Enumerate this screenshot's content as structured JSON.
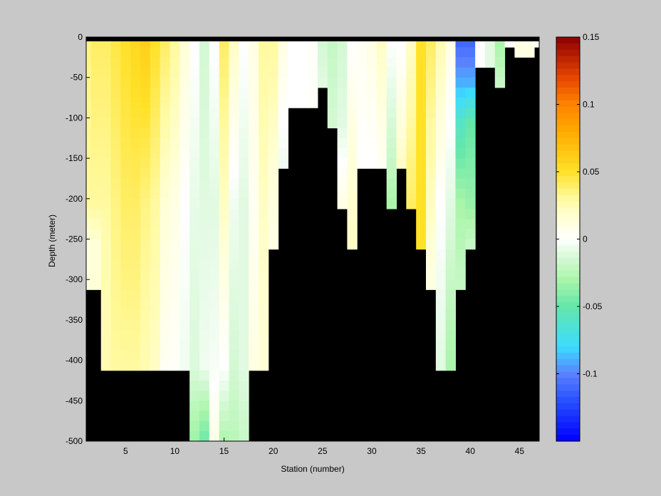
{
  "chart_data": {
    "type": "heatmap",
    "xlabel": "Station (number)",
    "ylabel": "Depth (meter)",
    "x_ticks": [
      5,
      10,
      15,
      20,
      25,
      30,
      35,
      40,
      45
    ],
    "y_ticks": [
      0,
      -50,
      -100,
      -150,
      -200,
      -250,
      -300,
      -350,
      -400,
      -450,
      -500
    ],
    "xlim": [
      1,
      47
    ],
    "ylim": [
      -500,
      0
    ],
    "x_start": 1,
    "y_top": 0,
    "cell_dx": 1,
    "cell_dy": -12.5,
    "no_data_color": "#000000",
    "colorbar": {
      "range": [
        -0.15,
        0.15
      ],
      "ticks": [
        0.15,
        0.1,
        0.05,
        0,
        -0.05,
        -0.1
      ],
      "tick_labels": [
        "0.15",
        "0.1",
        "0.05",
        "0",
        "-0.05",
        "-0.1"
      ]
    },
    "station_profiles": [
      {
        "station": 1,
        "max_depth": -300,
        "levels": [
          [
            0,
            0.035
          ],
          [
            -200,
            0.03
          ],
          [
            -250,
            0.012
          ]
        ]
      },
      {
        "station": 2,
        "max_depth": -300,
        "levels": [
          [
            0,
            0.04
          ],
          [
            -200,
            0.03
          ],
          [
            -250,
            0.015
          ]
        ]
      },
      {
        "station": 3,
        "max_depth": -400,
        "levels": [
          [
            0,
            0.04
          ],
          [
            -200,
            0.03
          ],
          [
            -250,
            0.025
          ],
          [
            -400,
            0.025
          ]
        ]
      },
      {
        "station": 4,
        "max_depth": -400,
        "levels": [
          [
            0,
            0.045
          ],
          [
            -200,
            0.035
          ],
          [
            -400,
            0.03
          ]
        ]
      },
      {
        "station": 5,
        "max_depth": -400,
        "levels": [
          [
            0,
            0.05
          ],
          [
            -200,
            0.04
          ],
          [
            -400,
            0.03
          ]
        ]
      },
      {
        "station": 6,
        "max_depth": -400,
        "levels": [
          [
            0,
            0.055
          ],
          [
            -200,
            0.04
          ],
          [
            -400,
            0.03
          ]
        ]
      },
      {
        "station": 7,
        "max_depth": -400,
        "levels": [
          [
            0,
            0.06
          ],
          [
            -200,
            0.035
          ],
          [
            -400,
            0.025
          ]
        ]
      },
      {
        "station": 8,
        "max_depth": -400,
        "levels": [
          [
            0,
            0.05
          ],
          [
            -200,
            0.03
          ],
          [
            -400,
            0.02
          ]
        ]
      },
      {
        "station": 9,
        "max_depth": -400,
        "levels": [
          [
            0,
            0.04
          ],
          [
            -200,
            0.015
          ],
          [
            -400,
            0.005
          ]
        ]
      },
      {
        "station": 10,
        "max_depth": -400,
        "levels": [
          [
            0,
            0.03
          ],
          [
            -200,
            0.01
          ],
          [
            -400,
            0.002
          ]
        ]
      },
      {
        "station": 11,
        "max_depth": -400,
        "levels": [
          [
            0,
            0.015
          ],
          [
            -200,
            0.0
          ],
          [
            -400,
            -0.005
          ]
        ]
      },
      {
        "station": 12,
        "max_depth": -500,
        "levels": [
          [
            0,
            0.0
          ],
          [
            -200,
            -0.008
          ],
          [
            -400,
            -0.012
          ],
          [
            -500,
            -0.035
          ]
        ]
      },
      {
        "station": 13,
        "max_depth": -500,
        "levels": [
          [
            0,
            -0.015
          ],
          [
            -200,
            -0.01
          ],
          [
            -400,
            -0.005
          ],
          [
            -500,
            -0.05
          ]
        ]
      },
      {
        "station": 14,
        "max_depth": -500,
        "levels": [
          [
            0,
            0.0
          ],
          [
            -200,
            -0.01
          ],
          [
            -400,
            -0.003
          ],
          [
            -500,
            0.01
          ]
        ]
      },
      {
        "station": 15,
        "max_depth": -500,
        "levels": [
          [
            0,
            0.04
          ],
          [
            -200,
            0.02
          ],
          [
            -400,
            0.0
          ],
          [
            -500,
            -0.03
          ]
        ]
      },
      {
        "station": 16,
        "max_depth": -500,
        "levels": [
          [
            0,
            0.02
          ],
          [
            -200,
            -0.005
          ],
          [
            -400,
            -0.015
          ],
          [
            -500,
            -0.025
          ]
        ]
      },
      {
        "station": 17,
        "max_depth": -500,
        "levels": [
          [
            0,
            0.0
          ],
          [
            -200,
            -0.01
          ],
          [
            -400,
            -0.01
          ],
          [
            -500,
            -0.02
          ]
        ]
      },
      {
        "station": 18,
        "max_depth": -400,
        "levels": [
          [
            0,
            0.01
          ],
          [
            -200,
            0.005
          ],
          [
            -400,
            0.01
          ]
        ]
      },
      {
        "station": 19,
        "max_depth": -400,
        "levels": [
          [
            0,
            0.03
          ],
          [
            -200,
            0.02
          ],
          [
            -400,
            0.015
          ]
        ]
      },
      {
        "station": 20,
        "max_depth": -250,
        "levels": [
          [
            0,
            0.03
          ],
          [
            -150,
            0.015
          ],
          [
            -250,
            0.01
          ]
        ]
      },
      {
        "station": 21,
        "max_depth": -150,
        "levels": [
          [
            0,
            0.01
          ],
          [
            -100,
            0.0
          ],
          [
            -150,
            -0.005
          ]
        ]
      },
      {
        "station": 22,
        "max_depth": -75,
        "levels": [
          [
            0,
            0.0
          ],
          [
            -75,
            0.0
          ]
        ]
      },
      {
        "station": 23,
        "max_depth": -75,
        "levels": [
          [
            0,
            0.0
          ],
          [
            -75,
            0.0
          ]
        ]
      },
      {
        "station": 24,
        "max_depth": -75,
        "levels": [
          [
            0,
            0.002
          ],
          [
            -75,
            0.002
          ]
        ]
      },
      {
        "station": 25,
        "max_depth": -50,
        "levels": [
          [
            0,
            -0.015
          ],
          [
            -50,
            -0.01
          ]
        ]
      },
      {
        "station": 26,
        "max_depth": -100,
        "levels": [
          [
            0,
            -0.02
          ],
          [
            -100,
            -0.015
          ]
        ]
      },
      {
        "station": 27,
        "max_depth": -200,
        "levels": [
          [
            0,
            -0.015
          ],
          [
            -100,
            -0.01
          ],
          [
            -200,
            0.01
          ]
        ]
      },
      {
        "station": 28,
        "max_depth": -250,
        "levels": [
          [
            0,
            0.0
          ],
          [
            -100,
            0.01
          ],
          [
            -250,
            0.02
          ]
        ]
      },
      {
        "station": 29,
        "max_depth": -150,
        "levels": [
          [
            0,
            0.005
          ],
          [
            -150,
            0.0
          ]
        ]
      },
      {
        "station": 30,
        "max_depth": -150,
        "levels": [
          [
            0,
            0.01
          ],
          [
            -150,
            0.0
          ]
        ]
      },
      {
        "station": 31,
        "max_depth": -150,
        "levels": [
          [
            0,
            0.02
          ],
          [
            -150,
            0.005
          ]
        ]
      },
      {
        "station": 32,
        "max_depth": -200,
        "levels": [
          [
            0,
            0.0
          ],
          [
            -150,
            -0.02
          ],
          [
            -200,
            -0.03
          ]
        ]
      },
      {
        "station": 33,
        "max_depth": -150,
        "levels": [
          [
            0,
            0.0
          ],
          [
            -150,
            0.02
          ]
        ]
      },
      {
        "station": 34,
        "max_depth": -200,
        "levels": [
          [
            0,
            0.02
          ],
          [
            -200,
            0.04
          ]
        ]
      },
      {
        "station": 35,
        "max_depth": -250,
        "levels": [
          [
            0,
            0.05
          ],
          [
            -250,
            0.05
          ]
        ]
      },
      {
        "station": 36,
        "max_depth": -300,
        "levels": [
          [
            0,
            0.04
          ],
          [
            -200,
            0.02
          ],
          [
            -300,
            0.01
          ]
        ]
      },
      {
        "station": 37,
        "max_depth": -400,
        "levels": [
          [
            0,
            0.025
          ],
          [
            -200,
            0.0
          ],
          [
            -400,
            -0.01
          ]
        ]
      },
      {
        "station": 38,
        "max_depth": -400,
        "levels": [
          [
            0,
            0.01
          ],
          [
            -200,
            -0.01
          ],
          [
            -400,
            -0.03
          ]
        ]
      },
      {
        "station": 39,
        "max_depth": -300,
        "levels": [
          [
            0,
            -0.11
          ],
          [
            -50,
            -0.09
          ],
          [
            -100,
            -0.06
          ],
          [
            -200,
            -0.03
          ],
          [
            -300,
            -0.02
          ]
        ]
      },
      {
        "station": 40,
        "max_depth": -250,
        "levels": [
          [
            0,
            -0.11
          ],
          [
            -50,
            -0.09
          ],
          [
            -100,
            -0.05
          ],
          [
            -200,
            -0.035
          ],
          [
            -250,
            -0.02
          ]
        ]
      },
      {
        "station": 41,
        "max_depth": -25,
        "levels": [
          [
            0,
            0.0
          ],
          [
            -25,
            0.0
          ]
        ]
      },
      {
        "station": 42,
        "max_depth": -25,
        "levels": [
          [
            0,
            -0.01
          ],
          [
            -25,
            -0.01
          ]
        ]
      },
      {
        "station": 43,
        "max_depth": -50,
        "levels": [
          [
            0,
            -0.03
          ],
          [
            -50,
            -0.02
          ]
        ]
      },
      {
        "station": 44,
        "max_depth": 0,
        "levels": [
          [
            0,
            0.0
          ]
        ]
      },
      {
        "station": 45,
        "max_depth": -12.5,
        "levels": [
          [
            0,
            0.01
          ]
        ]
      },
      {
        "station": 46,
        "max_depth": -12.5,
        "levels": [
          [
            0,
            0.01
          ]
        ]
      },
      {
        "station": 47,
        "max_depth": 0,
        "levels": [
          [
            0,
            0.0
          ]
        ]
      }
    ]
  }
}
